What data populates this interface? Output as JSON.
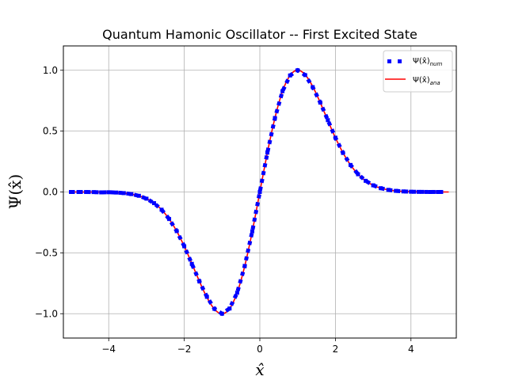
{
  "chart_data": {
    "type": "line",
    "title": "Quantum Hamonic Oscillator -- First Excited State",
    "xlabel": "x̂",
    "ylabel": "Ψ(x̂)",
    "xlim": [
      -5.2,
      5.2
    ],
    "ylim": [
      -1.2,
      1.2
    ],
    "xticks": [
      -4,
      -2,
      0,
      2,
      4
    ],
    "yticks": [
      -1.0,
      -0.5,
      0.0,
      0.5,
      1.0
    ],
    "xtick_labels": [
      "−4",
      "−2",
      "0",
      "2",
      "4"
    ],
    "ytick_labels": [
      "−1.0",
      "−0.5",
      "0.0",
      "0.5",
      "1.0"
    ],
    "grid": true,
    "legend_position": "top-right",
    "function": "psi(x) = 1.6487 * x * exp(-x^2/2)",
    "series": [
      {
        "name": "Ψ(x̂)num",
        "style": "dotted-square",
        "color": "#0000ff",
        "x": [
          -5.0,
          -4.8,
          -4.6,
          -4.4,
          -4.2,
          -4.0,
          -3.8,
          -3.6,
          -3.4,
          -3.2,
          -3.0,
          -2.8,
          -2.6,
          -2.4,
          -2.2,
          -2.0,
          -1.8,
          -1.6,
          -1.4,
          -1.2,
          -1.0,
          -0.8,
          -0.6,
          -0.4,
          -0.2,
          0.0,
          0.2,
          0.4,
          0.6,
          0.8,
          1.0,
          1.2,
          1.4,
          1.6,
          1.8,
          2.0,
          2.2,
          2.4,
          2.6,
          2.8,
          3.0,
          3.2,
          3.4,
          3.6,
          3.8,
          4.0,
          4.2,
          4.4,
          4.6,
          4.8
        ],
        "y": [
          -0.0,
          -0.0001,
          -0.0002,
          -0.0009,
          -0.0032,
          -0.0022,
          -0.0046,
          -0.0092,
          -0.0174,
          -0.0312,
          -0.0549,
          -0.0918,
          -0.1456,
          -0.2221,
          -0.3215,
          -0.4462,
          -0.5903,
          -0.7342,
          -0.8616,
          -0.9603,
          -1.0,
          -0.9572,
          -0.8279,
          -0.608,
          -0.3233,
          0.0,
          0.3233,
          0.608,
          0.8279,
          0.9572,
          1.0,
          0.9603,
          0.8616,
          0.7342,
          0.5903,
          0.4462,
          0.3215,
          0.2221,
          0.1456,
          0.0918,
          0.0549,
          0.0312,
          0.0174,
          0.0092,
          0.0046,
          0.0022,
          0.001,
          0.0004,
          0.0002,
          0.0001
        ]
      },
      {
        "name": "Ψ(x̂)ana",
        "style": "solid",
        "color": "#ff0000"
      }
    ]
  },
  "legend": {
    "num": {
      "base": "Ψ(x̂)",
      "sub": "num"
    },
    "ana": {
      "base": "Ψ(x̂)",
      "sub": "ana"
    }
  }
}
